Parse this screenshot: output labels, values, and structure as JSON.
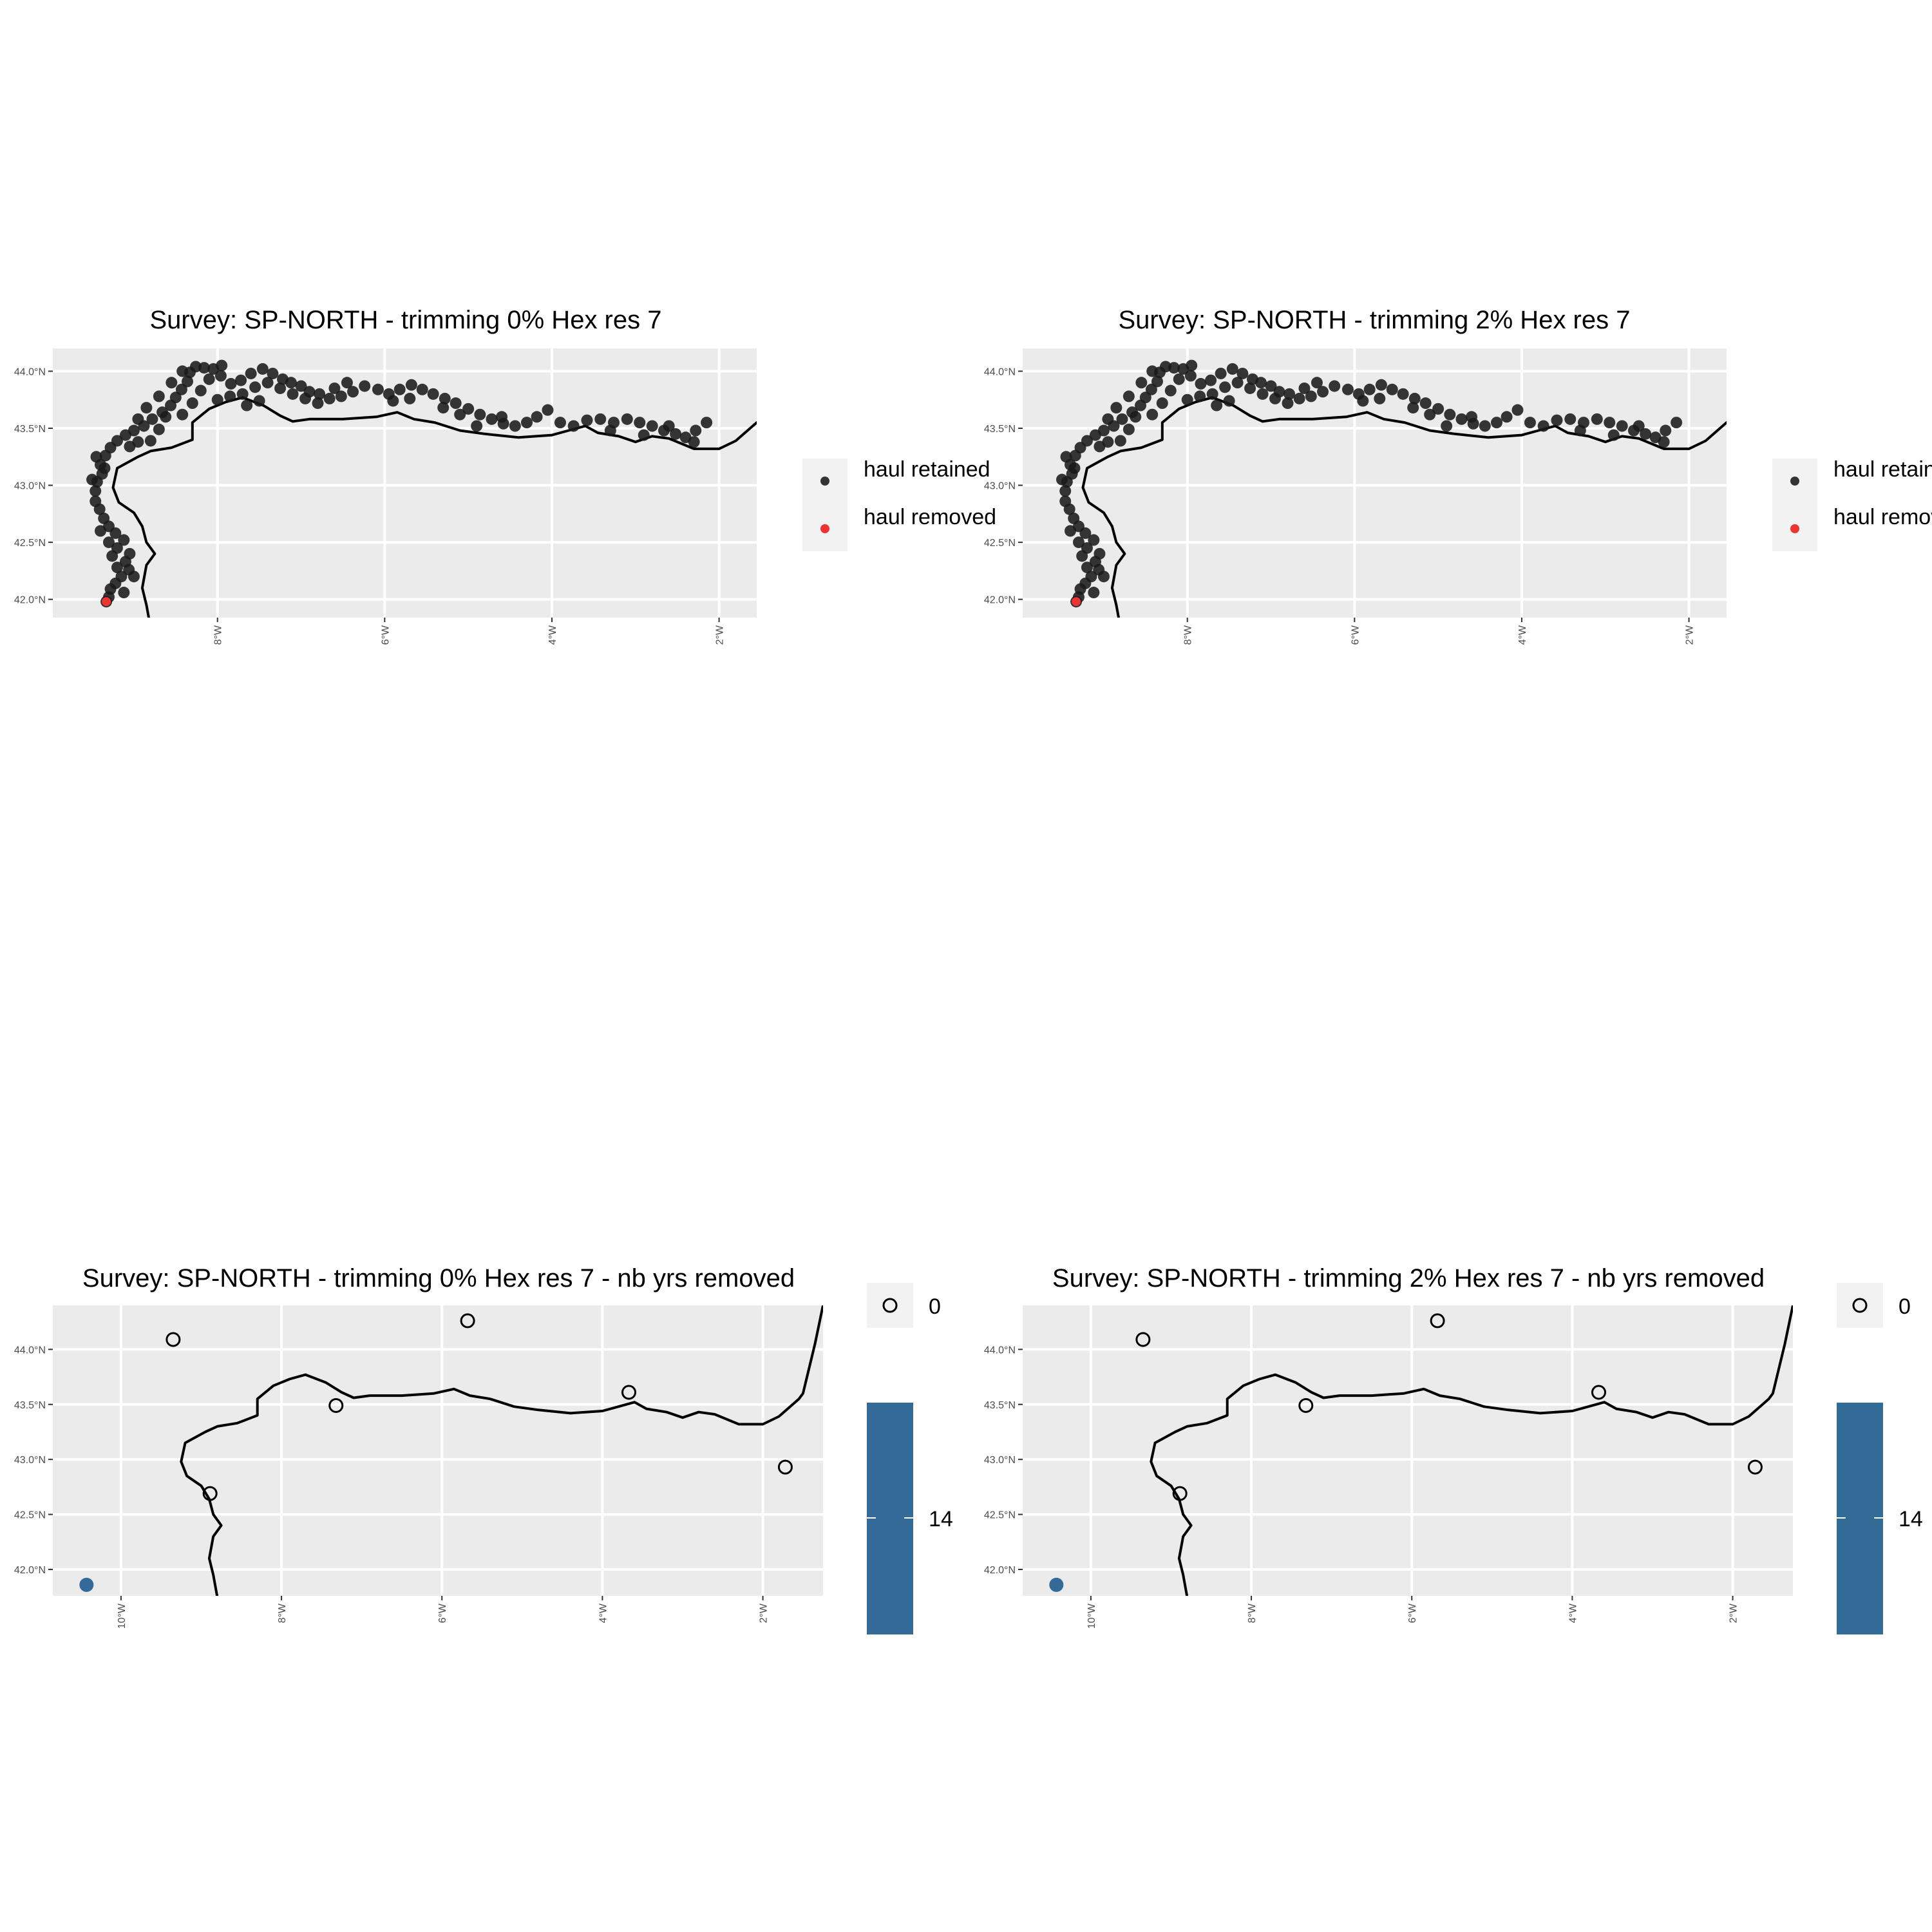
{
  "chart_data": [
    {
      "type": "scatter",
      "title": "Survey: SP-NORTH - trimming 0% Hex res 7",
      "xlabel": "",
      "ylabel": "",
      "xlim": [
        -9.97,
        -1.55
      ],
      "ylim": [
        41.84,
        44.2
      ],
      "x_ticks": [
        {
          "value": -8,
          "label": "8°W"
        },
        {
          "value": -6,
          "label": "6°W"
        },
        {
          "value": -4,
          "label": "4°W"
        },
        {
          "value": -2,
          "label": "2°W"
        }
      ],
      "y_ticks": [
        {
          "value": 42.0,
          "label": "42.0°N"
        },
        {
          "value": 42.5,
          "label": "42.5°N"
        },
        {
          "value": 43.0,
          "label": "43.0°N"
        },
        {
          "value": 43.5,
          "label": "43.5°N"
        },
        {
          "value": 44.0,
          "label": "44.0°N"
        }
      ],
      "grid": true,
      "legend": {
        "position": "right",
        "entries": [
          {
            "label": "haul retained",
            "color": "#333333"
          },
          {
            "label": "haul removed",
            "color": "#ee3333"
          }
        ]
      },
      "series": [
        {
          "name": "haul retained",
          "color": "#1a1a1a"
        },
        {
          "name": "haul removed",
          "color": "#ee3333",
          "points": [
            [
              -9.33,
              41.98
            ]
          ]
        }
      ]
    },
    {
      "type": "scatter",
      "title": "Survey: SP-NORTH - trimming 2% Hex res 7",
      "xlabel": "",
      "ylabel": "",
      "xlim": [
        -9.97,
        -1.55
      ],
      "ylim": [
        41.84,
        44.2
      ],
      "x_ticks": [
        {
          "value": -8,
          "label": "8°W"
        },
        {
          "value": -6,
          "label": "6°W"
        },
        {
          "value": -4,
          "label": "4°W"
        },
        {
          "value": -2,
          "label": "2°W"
        }
      ],
      "y_ticks": [
        {
          "value": 42.0,
          "label": "42.0°N"
        },
        {
          "value": 42.5,
          "label": "42.5°N"
        },
        {
          "value": 43.0,
          "label": "43.0°N"
        },
        {
          "value": 43.5,
          "label": "43.5°N"
        },
        {
          "value": 44.0,
          "label": "44.0°N"
        }
      ],
      "grid": true,
      "legend": {
        "position": "right",
        "entries": [
          {
            "label": "haul retained",
            "color": "#333333"
          },
          {
            "label": "haul removed",
            "color": "#ee3333"
          }
        ]
      },
      "series": [
        {
          "name": "haul retained",
          "color": "#1a1a1a"
        },
        {
          "name": "haul removed",
          "color": "#ee3333",
          "points": [
            [
              -9.33,
              41.98
            ]
          ]
        }
      ]
    },
    {
      "type": "scatter",
      "title": "Survey: SP-NORTH - trimming 0% Hex res 7 - nb yrs removed",
      "xlabel": "",
      "ylabel": "",
      "xlim": [
        -10.85,
        -1.25
      ],
      "ylim": [
        41.76,
        44.4
      ],
      "x_ticks": [
        {
          "value": -10,
          "label": "10°W"
        },
        {
          "value": -8,
          "label": "8°W"
        },
        {
          "value": -6,
          "label": "6°W"
        },
        {
          "value": -4,
          "label": "4°W"
        },
        {
          "value": -2,
          "label": "2°W"
        }
      ],
      "y_ticks": [
        {
          "value": 42.0,
          "label": "42.0°N"
        },
        {
          "value": 42.5,
          "label": "42.5°N"
        },
        {
          "value": 43.0,
          "label": "43.0°N"
        },
        {
          "value": 43.5,
          "label": "43.5°N"
        },
        {
          "value": 44.0,
          "label": "44.0°N"
        }
      ],
      "grid": true,
      "legend": {
        "position": "right",
        "shape_entry": "0",
        "colorbar_label": "14"
      },
      "points": [
        {
          "lon": -9.35,
          "lat": 44.09,
          "value": 0
        },
        {
          "lon": -5.68,
          "lat": 44.26,
          "value": 0
        },
        {
          "lon": -7.32,
          "lat": 43.49,
          "value": 0
        },
        {
          "lon": -3.67,
          "lat": 43.61,
          "value": 0
        },
        {
          "lon": -8.89,
          "lat": 42.69,
          "value": 0
        },
        {
          "lon": -1.72,
          "lat": 42.93,
          "value": 0
        },
        {
          "lon": -10.43,
          "lat": 41.86,
          "value": 14
        }
      ]
    },
    {
      "type": "scatter",
      "title": "Survey: SP-NORTH - trimming 2% Hex res 7 - nb yrs removed",
      "xlabel": "",
      "ylabel": "",
      "xlim": [
        -10.85,
        -1.25
      ],
      "ylim": [
        41.76,
        44.4
      ],
      "x_ticks": [
        {
          "value": -10,
          "label": "10°W"
        },
        {
          "value": -8,
          "label": "8°W"
        },
        {
          "value": -6,
          "label": "6°W"
        },
        {
          "value": -4,
          "label": "4°W"
        },
        {
          "value": -2,
          "label": "2°W"
        }
      ],
      "y_ticks": [
        {
          "value": 42.0,
          "label": "42.0°N"
        },
        {
          "value": 42.5,
          "label": "42.5°N"
        },
        {
          "value": 43.0,
          "label": "43.0°N"
        },
        {
          "value": 43.5,
          "label": "43.5°N"
        },
        {
          "value": 44.0,
          "label": "44.0°N"
        }
      ],
      "grid": true,
      "legend": {
        "position": "right",
        "shape_entry": "0",
        "colorbar_label": "14"
      },
      "points": [
        {
          "lon": -9.35,
          "lat": 44.09,
          "value": 0
        },
        {
          "lon": -5.68,
          "lat": 44.26,
          "value": 0
        },
        {
          "lon": -7.32,
          "lat": 43.49,
          "value": 0
        },
        {
          "lon": -3.67,
          "lat": 43.61,
          "value": 0
        },
        {
          "lon": -8.89,
          "lat": 42.69,
          "value": 0
        },
        {
          "lon": -1.72,
          "lat": 42.93,
          "value": 0
        },
        {
          "lon": -10.43,
          "lat": 41.86,
          "value": 14
        }
      ]
    }
  ],
  "coastline": [
    [
      -1.55,
      43.55
    ],
    [
      -1.8,
      43.39
    ],
    [
      -2.0,
      43.32
    ],
    [
      -2.3,
      43.32
    ],
    [
      -2.6,
      43.41
    ],
    [
      -2.8,
      43.43
    ],
    [
      -3.0,
      43.38
    ],
    [
      -3.2,
      43.43
    ],
    [
      -3.45,
      43.46
    ],
    [
      -3.6,
      43.52
    ],
    [
      -3.8,
      43.48
    ],
    [
      -4.0,
      43.44
    ],
    [
      -4.4,
      43.42
    ],
    [
      -4.8,
      43.45
    ],
    [
      -5.1,
      43.48
    ],
    [
      -5.4,
      43.55
    ],
    [
      -5.65,
      43.58
    ],
    [
      -5.85,
      43.64
    ],
    [
      -6.1,
      43.6
    ],
    [
      -6.5,
      43.58
    ],
    [
      -6.9,
      43.58
    ],
    [
      -7.1,
      43.56
    ],
    [
      -7.25,
      43.61
    ],
    [
      -7.45,
      43.7
    ],
    [
      -7.7,
      43.77
    ],
    [
      -7.9,
      43.73
    ],
    [
      -8.1,
      43.67
    ],
    [
      -8.3,
      43.55
    ],
    [
      -8.3,
      43.4
    ],
    [
      -8.55,
      43.33
    ],
    [
      -8.8,
      43.3
    ],
    [
      -8.95,
      43.25
    ],
    [
      -9.2,
      43.15
    ],
    [
      -9.25,
      42.98
    ],
    [
      -9.18,
      42.85
    ],
    [
      -9.0,
      42.76
    ],
    [
      -8.9,
      42.64
    ],
    [
      -8.85,
      42.5
    ],
    [
      -8.75,
      42.4
    ],
    [
      -8.85,
      42.3
    ],
    [
      -8.9,
      42.1
    ],
    [
      -8.85,
      41.95
    ],
    [
      -8.8,
      41.75
    ]
  ],
  "hauls": [
    [
      -9.33,
      41.98
    ],
    [
      -9.3,
      42.02
    ],
    [
      -9.28,
      42.09
    ],
    [
      -9.22,
      42.14
    ],
    [
      -9.15,
      42.2
    ],
    [
      -9.06,
      42.26
    ],
    [
      -9.1,
      42.33
    ],
    [
      -9.26,
      42.38
    ],
    [
      -9.2,
      42.45
    ],
    [
      -9.12,
      42.52
    ],
    [
      -9.22,
      42.58
    ],
    [
      -9.3,
      42.64
    ],
    [
      -9.36,
      42.71
    ],
    [
      -9.41,
      42.79
    ],
    [
      -9.46,
      42.86
    ],
    [
      -9.46,
      42.95
    ],
    [
      -9.44,
      43.03
    ],
    [
      -9.38,
      43.1
    ],
    [
      -9.4,
      43.18
    ],
    [
      -9.34,
      43.26
    ],
    [
      -9.28,
      43.33
    ],
    [
      -9.2,
      43.39
    ],
    [
      -9.1,
      43.44
    ],
    [
      -9.0,
      43.48
    ],
    [
      -8.88,
      43.52
    ],
    [
      -8.78,
      43.58
    ],
    [
      -8.66,
      43.64
    ],
    [
      -8.56,
      43.7
    ],
    [
      -8.5,
      43.77
    ],
    [
      -8.43,
      43.84
    ],
    [
      -8.36,
      43.91
    ],
    [
      -8.33,
      43.99
    ],
    [
      -8.26,
      44.04
    ],
    [
      -8.16,
      44.03
    ],
    [
      -8.05,
      44.02
    ],
    [
      -7.96,
      43.96
    ],
    [
      -7.84,
      43.89
    ],
    [
      -7.72,
      43.92
    ],
    [
      -7.6,
      43.98
    ],
    [
      -7.46,
      44.02
    ],
    [
      -7.34,
      43.98
    ],
    [
      -7.22,
      43.93
    ],
    [
      -7.12,
      43.9
    ],
    [
      -7.0,
      43.87
    ],
    [
      -6.9,
      43.82
    ],
    [
      -6.78,
      43.8
    ],
    [
      -6.66,
      43.76
    ],
    [
      -6.52,
      43.78
    ],
    [
      -6.38,
      43.82
    ],
    [
      -6.24,
      43.87
    ],
    [
      -6.08,
      43.84
    ],
    [
      -5.95,
      43.8
    ],
    [
      -5.82,
      43.84
    ],
    [
      -5.68,
      43.88
    ],
    [
      -5.55,
      43.84
    ],
    [
      -5.42,
      43.8
    ],
    [
      -5.28,
      43.76
    ],
    [
      -5.15,
      43.72
    ],
    [
      -5.0,
      43.67
    ],
    [
      -4.86,
      43.62
    ],
    [
      -4.72,
      43.58
    ],
    [
      -4.58,
      43.54
    ],
    [
      -4.44,
      43.52
    ],
    [
      -4.3,
      43.55
    ],
    [
      -4.18,
      43.6
    ],
    [
      -4.05,
      43.66
    ],
    [
      -3.9,
      43.55
    ],
    [
      -3.74,
      43.52
    ],
    [
      -3.58,
      43.57
    ],
    [
      -3.42,
      43.58
    ],
    [
      -3.26,
      43.55
    ],
    [
      -3.1,
      43.58
    ],
    [
      -2.95,
      43.55
    ],
    [
      -2.8,
      43.52
    ],
    [
      -2.66,
      43.48
    ],
    [
      -2.52,
      43.45
    ],
    [
      -2.4,
      43.42
    ],
    [
      -2.28,
      43.48
    ],
    [
      -2.15,
      43.55
    ],
    [
      -8.7,
      43.49
    ],
    [
      -8.62,
      43.6
    ],
    [
      -8.8,
      43.39
    ],
    [
      -8.95,
      43.38
    ],
    [
      -9.05,
      43.34
    ],
    [
      -8.42,
      43.62
    ],
    [
      -8.3,
      43.72
    ],
    [
      -8.2,
      43.83
    ],
    [
      -8.1,
      43.93
    ],
    [
      -7.95,
      44.05
    ],
    [
      -8.0,
      43.75
    ],
    [
      -7.85,
      43.78
    ],
    [
      -7.7,
      43.8
    ],
    [
      -7.55,
      43.86
    ],
    [
      -7.4,
      43.9
    ],
    [
      -7.25,
      43.85
    ],
    [
      -7.1,
      43.8
    ],
    [
      -6.95,
      43.76
    ],
    [
      -6.8,
      43.72
    ],
    [
      -5.9,
      43.74
    ],
    [
      -5.7,
      43.76
    ],
    [
      -5.3,
      43.68
    ],
    [
      -5.1,
      43.62
    ],
    [
      -9.0,
      42.2
    ],
    [
      -9.12,
      42.06
    ],
    [
      -9.2,
      42.28
    ],
    [
      -9.05,
      42.4
    ],
    [
      -9.3,
      42.5
    ],
    [
      -9.4,
      42.6
    ],
    [
      -9.45,
      43.25
    ],
    [
      -9.35,
      43.15
    ],
    [
      -9.5,
      43.05
    ],
    [
      -8.95,
      43.58
    ],
    [
      -8.85,
      43.68
    ],
    [
      -8.7,
      43.78
    ],
    [
      -8.55,
      43.9
    ],
    [
      -8.42,
      44.0
    ],
    [
      -7.65,
      43.7
    ],
    [
      -7.5,
      43.74
    ],
    [
      -6.6,
      43.85
    ],
    [
      -6.45,
      43.9
    ],
    [
      -4.9,
      43.52
    ],
    [
      -4.6,
      43.6
    ],
    [
      -3.3,
      43.48
    ],
    [
      -2.9,
      43.44
    ],
    [
      -2.6,
      43.52
    ],
    [
      -2.3,
      43.38
    ]
  ],
  "colors": {
    "panel_bg": "#ebebeb",
    "grid": "#ffffff",
    "retained": "#1a1a1a",
    "removed": "#ee3333",
    "colorbar": "#336a98"
  }
}
